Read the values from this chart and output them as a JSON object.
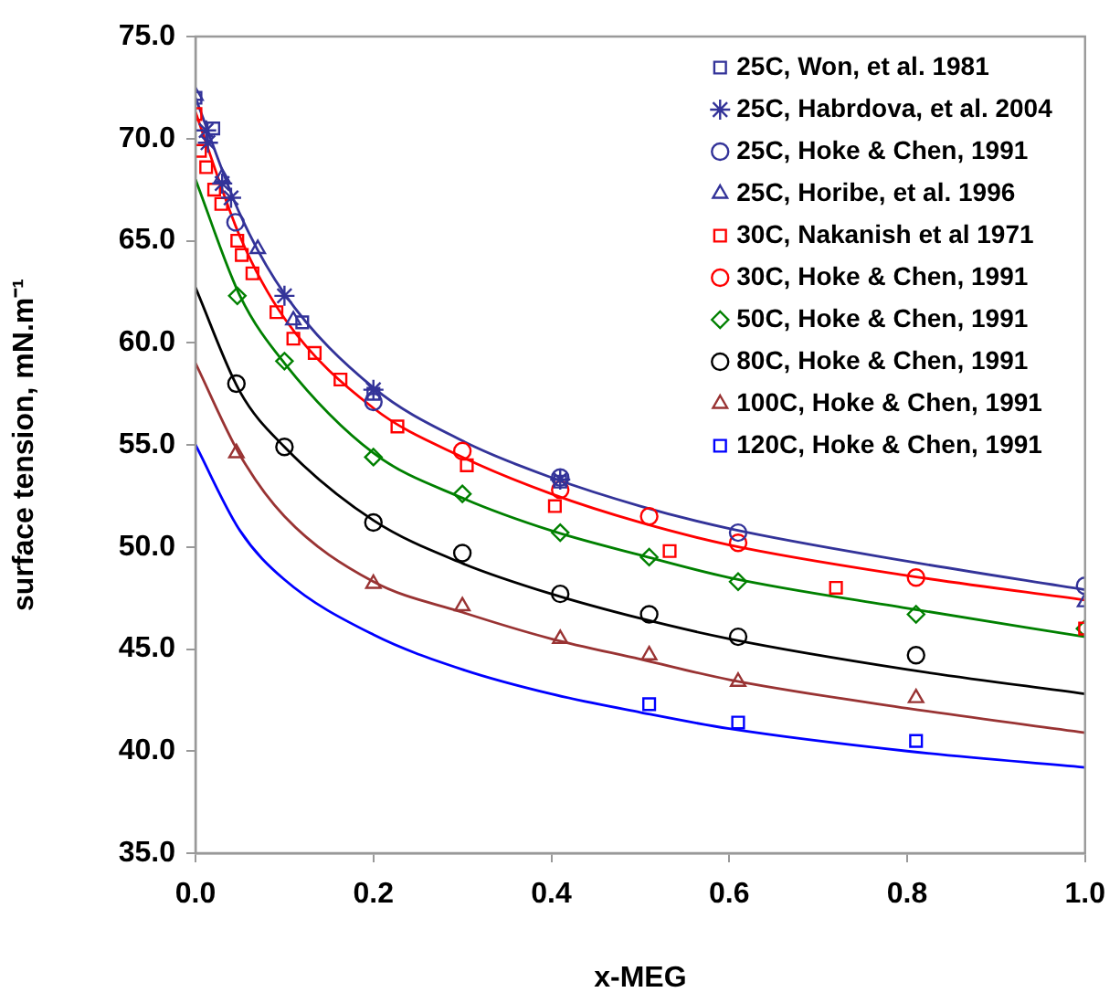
{
  "chart_data": {
    "type": "scatter",
    "xlabel": "x-MEG",
    "ylabel": "surface tension, mN.m⁻¹",
    "xlim": [
      0,
      1
    ],
    "xticks": [
      {
        "value": 0,
        "label": "0.0"
      },
      {
        "value": 0.2,
        "label": "0.2"
      },
      {
        "value": 0.4,
        "label": "0.4"
      },
      {
        "value": 0.6,
        "label": "0.6"
      },
      {
        "value": 0.8,
        "label": "0.8"
      },
      {
        "value": 1,
        "label": "1.0"
      }
    ],
    "ylim": [
      35,
      75
    ],
    "yticks": [
      {
        "value": 35,
        "label": "35.0"
      },
      {
        "value": 40,
        "label": "40.0"
      },
      {
        "value": 45,
        "label": "45.0"
      },
      {
        "value": 50,
        "label": "50.0"
      },
      {
        "value": 55,
        "label": "55.0"
      },
      {
        "value": 60,
        "label": "60.0"
      },
      {
        "value": 65,
        "label": "65.0"
      },
      {
        "value": 70,
        "label": "70.0"
      },
      {
        "value": 75,
        "label": "75.0"
      }
    ],
    "grid": false,
    "legend": "top right",
    "series": [
      {
        "name": "25C, Won, et al. 1981",
        "marker": "square",
        "color": "#333399",
        "x": [
          0,
          0.02,
          0.12,
          0.2,
          0.41
        ],
        "values": [
          72.0,
          70.5,
          61.0,
          57.5,
          53.2
        ]
      },
      {
        "name": "25C, Habrdova, et al. 2004",
        "marker": "cross",
        "color": "#333399",
        "x": [
          0.012,
          0.014,
          0.03,
          0.04,
          0.1,
          0.2,
          0.41
        ],
        "values": [
          70.4,
          69.8,
          67.8,
          67.1,
          62.3,
          57.7,
          53.3
        ]
      },
      {
        "name": "25C, Hoke & Chen, 1991",
        "marker": "circle",
        "color": "#333399",
        "x": [
          0.045,
          0.2,
          0.41,
          0.61,
          1.0
        ],
        "values": [
          65.9,
          57.1,
          53.4,
          50.7,
          48.1
        ]
      },
      {
        "name": "25C, Horibe, et al. 1996",
        "marker": "triangle",
        "color": "#333399",
        "x": [
          0,
          0.03,
          0.07,
          0.11,
          1.0
        ],
        "values": [
          72.1,
          68.1,
          64.6,
          61.1,
          47.3
        ]
      },
      {
        "name": "30C, Nakanish et al 1971",
        "marker": "square",
        "color": "#ff0000",
        "x": [
          0,
          0.005,
          0.012,
          0.021,
          0.029,
          0.047,
          0.052,
          0.064,
          0.091,
          0.11,
          0.134,
          0.163,
          0.227,
          0.305,
          0.404,
          0.533,
          0.72,
          1.0
        ],
        "values": [
          71.2,
          69.4,
          68.6,
          67.5,
          66.8,
          65.0,
          64.3,
          63.4,
          61.5,
          60.2,
          59.5,
          58.2,
          55.9,
          54.0,
          52.0,
          49.8,
          48.0,
          46.0
        ]
      },
      {
        "name": "30C, Hoke & Chen, 1991",
        "marker": "circle",
        "color": "#ff0000",
        "x": [
          0.3,
          0.41,
          0.51,
          0.61,
          0.81
        ],
        "values": [
          54.7,
          52.8,
          51.5,
          50.2,
          48.5
        ]
      },
      {
        "name": "50C, Hoke & Chen, 1991",
        "marker": "diamond",
        "color": "#008000",
        "x": [
          0.047,
          0.1,
          0.2,
          0.3,
          0.41,
          0.51,
          0.61,
          0.81,
          1.0
        ],
        "values": [
          62.3,
          59.1,
          54.4,
          52.6,
          50.7,
          49.5,
          48.3,
          46.7,
          46.0
        ]
      },
      {
        "name": "80C, Hoke & Chen, 1991",
        "marker": "circle",
        "color": "#000000",
        "x": [
          0.046,
          0.1,
          0.2,
          0.3,
          0.41,
          0.51,
          0.61,
          0.81
        ],
        "values": [
          58.0,
          54.9,
          51.2,
          49.7,
          47.7,
          46.7,
          45.6,
          44.7
        ]
      },
      {
        "name": "100C, Hoke & Chen, 1991",
        "marker": "triangle",
        "color": "#993333",
        "x": [
          0.046,
          0.2,
          0.3,
          0.41,
          0.51,
          0.61,
          0.81
        ],
        "values": [
          54.6,
          48.2,
          47.1,
          45.5,
          44.7,
          43.4,
          42.6
        ]
      },
      {
        "name": "120C, Hoke & Chen, 1991",
        "marker": "square",
        "color": "#0000ff",
        "x": [
          0.51,
          0.61,
          0.81
        ],
        "values": [
          42.3,
          41.4,
          40.5
        ]
      },
      {
        "type": "line",
        "marker": "none",
        "color": "#333399",
        "x": [
          0,
          0.05,
          0.1,
          0.2,
          0.3,
          0.4,
          0.5,
          0.6,
          0.8,
          1.0
        ],
        "values": [
          72.0,
          66.3,
          62.4,
          57.8,
          55.2,
          53.4,
          52.0,
          50.9,
          49.3,
          47.9
        ]
      },
      {
        "type": "line",
        "marker": "none",
        "color": "#ff0000",
        "x": [
          0,
          0.05,
          0.1,
          0.2,
          0.3,
          0.4,
          0.5,
          0.6,
          0.8,
          1.0
        ],
        "values": [
          71.3,
          65.2,
          61.2,
          56.8,
          54.4,
          52.6,
          51.2,
          50.1,
          48.6,
          47.4
        ]
      },
      {
        "type": "line",
        "marker": "none",
        "color": "#008000",
        "x": [
          0,
          0.05,
          0.1,
          0.2,
          0.3,
          0.4,
          0.5,
          0.6,
          0.8,
          1.0
        ],
        "values": [
          68.0,
          62.3,
          59.0,
          54.6,
          52.4,
          50.8,
          49.6,
          48.5,
          47.0,
          45.6
        ]
      },
      {
        "type": "line",
        "marker": "none",
        "color": "#000000",
        "x": [
          0,
          0.05,
          0.1,
          0.2,
          0.3,
          0.4,
          0.5,
          0.6,
          0.8,
          1.0
        ],
        "values": [
          62.7,
          57.6,
          54.9,
          51.3,
          49.2,
          47.7,
          46.5,
          45.5,
          44.0,
          42.8
        ]
      },
      {
        "type": "line",
        "marker": "none",
        "color": "#993333",
        "x": [
          0,
          0.05,
          0.1,
          0.2,
          0.3,
          0.4,
          0.5,
          0.6,
          0.8,
          1.0
        ],
        "values": [
          59.0,
          54.5,
          51.5,
          48.3,
          46.8,
          45.5,
          44.5,
          43.5,
          42.1,
          40.9
        ]
      },
      {
        "type": "line",
        "marker": "none",
        "color": "#0000ff",
        "x": [
          0,
          0.05,
          0.1,
          0.2,
          0.3,
          0.4,
          0.5,
          0.6,
          0.8,
          1.0
        ],
        "values": [
          55.0,
          50.8,
          48.4,
          45.7,
          44.0,
          42.8,
          41.9,
          41.1,
          40.0,
          39.2
        ]
      }
    ]
  }
}
